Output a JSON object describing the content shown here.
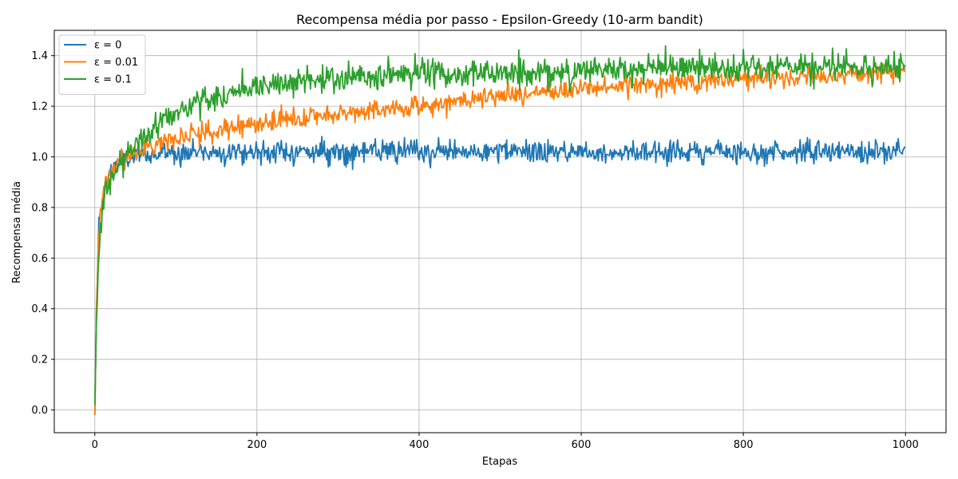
{
  "chart_data": {
    "type": "line",
    "title": "Recompensa média por passo - Epsilon-Greedy (10-arm bandit)",
    "xlabel": "Etapas",
    "ylabel": "Recompensa média",
    "xlim": [
      -50,
      1050
    ],
    "ylim": [
      -0.09,
      1.5
    ],
    "xticks": [
      0,
      200,
      400,
      600,
      800,
      1000
    ],
    "yticks": [
      0.0,
      0.2,
      0.4,
      0.6,
      0.8,
      1.0,
      1.2,
      1.4
    ],
    "xtick_labels": [
      "0",
      "200",
      "400",
      "600",
      "800",
      "1000"
    ],
    "ytick_labels": [
      "0.0",
      "0.2",
      "0.4",
      "0.6",
      "0.8",
      "1.0",
      "1.2",
      "1.4"
    ],
    "grid": true,
    "legend_position": "top-left",
    "n_steps": 1000,
    "series": [
      {
        "name": "ε = 0",
        "color": "#1f77b4",
        "checkpoints": [
          [
            0,
            -0.02
          ],
          [
            2,
            0.4
          ],
          [
            5,
            0.72
          ],
          [
            10,
            0.85
          ],
          [
            20,
            0.95
          ],
          [
            30,
            0.98
          ],
          [
            50,
            1.0
          ],
          [
            100,
            1.02
          ],
          [
            150,
            1.02
          ],
          [
            1000,
            1.02
          ]
        ],
        "noise": 0.022
      },
      {
        "name": "ε = 0.01",
        "color": "#ff7f0e",
        "checkpoints": [
          [
            0,
            -0.02
          ],
          [
            2,
            0.4
          ],
          [
            5,
            0.72
          ],
          [
            10,
            0.85
          ],
          [
            20,
            0.95
          ],
          [
            30,
            0.98
          ],
          [
            50,
            1.02
          ],
          [
            100,
            1.08
          ],
          [
            200,
            1.13
          ],
          [
            300,
            1.17
          ],
          [
            400,
            1.2
          ],
          [
            500,
            1.24
          ],
          [
            600,
            1.27
          ],
          [
            700,
            1.29
          ],
          [
            800,
            1.31
          ],
          [
            900,
            1.32
          ],
          [
            1000,
            1.34
          ]
        ],
        "noise": 0.02
      },
      {
        "name": "ε = 0.1",
        "color": "#2ca02c",
        "checkpoints": [
          [
            0,
            0.02
          ],
          [
            2,
            0.35
          ],
          [
            5,
            0.62
          ],
          [
            10,
            0.8
          ],
          [
            20,
            0.9
          ],
          [
            30,
            0.97
          ],
          [
            50,
            1.06
          ],
          [
            100,
            1.18
          ],
          [
            150,
            1.24
          ],
          [
            200,
            1.28
          ],
          [
            300,
            1.31
          ],
          [
            400,
            1.33
          ],
          [
            500,
            1.33
          ],
          [
            600,
            1.34
          ],
          [
            700,
            1.35
          ],
          [
            800,
            1.35
          ],
          [
            900,
            1.35
          ],
          [
            1000,
            1.36
          ]
        ],
        "noise": 0.028
      }
    ]
  }
}
